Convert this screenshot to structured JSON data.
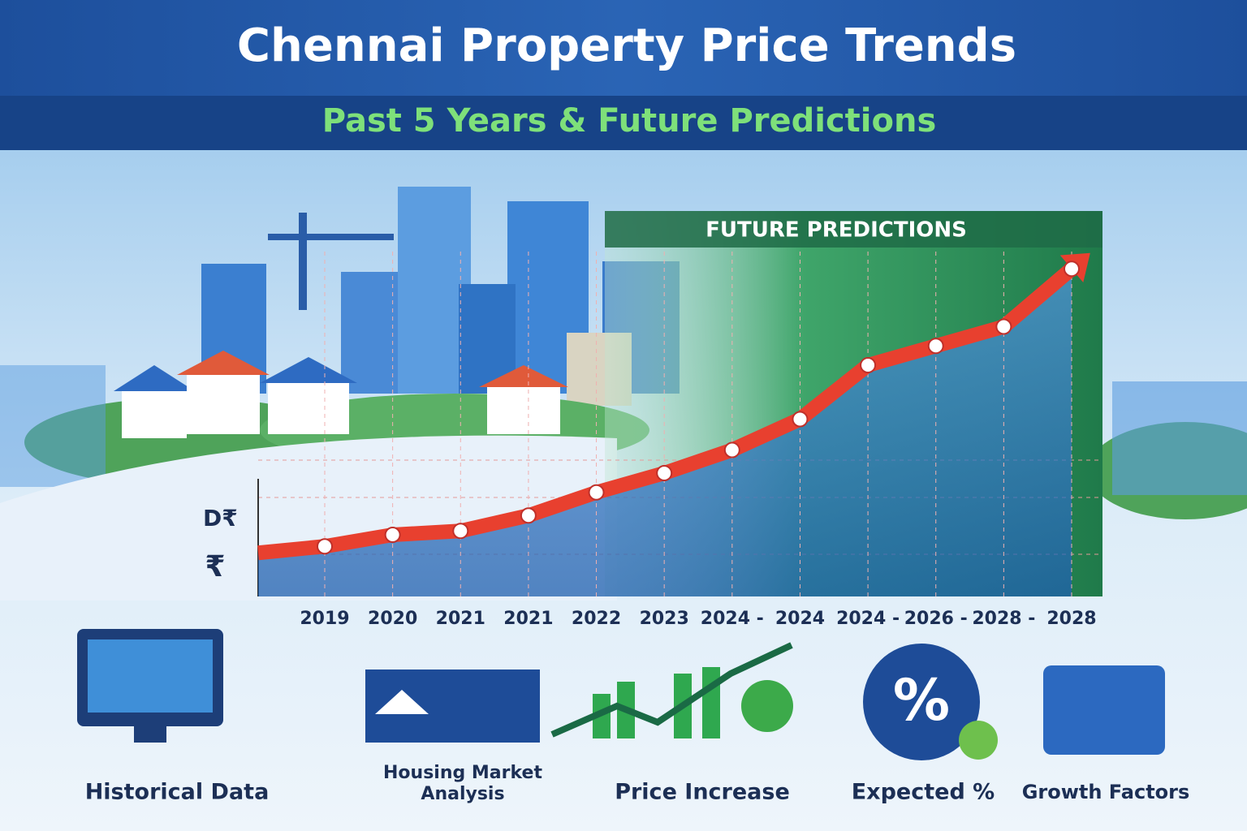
{
  "header": {
    "title": "Chennai Property Price Trends",
    "subtitle": "Past 5 Years & Future Predictions"
  },
  "chart_data": {
    "type": "line",
    "annotation": "FUTURE PREDICTIONS",
    "y_symbols": [
      "D₹",
      "₹"
    ],
    "categories": [
      "2019",
      "2020",
      "2021",
      "2021",
      "2022",
      "2023",
      "2024 -",
      "2024",
      "2024 -",
      "2026 -",
      "2028 -",
      "2028"
    ],
    "values": [
      13,
      16,
      17,
      21,
      27,
      32,
      38,
      46,
      60,
      65,
      70,
      85
    ],
    "color": "#e8402f",
    "ylim": [
      0,
      100
    ]
  },
  "features": [
    "Historical Data",
    "Housing Market Analysis",
    "Price Increase",
    "Expected %",
    "Growth Factors"
  ]
}
